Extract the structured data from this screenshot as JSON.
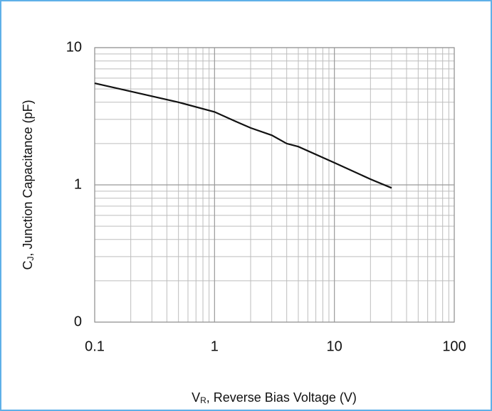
{
  "chart_data": {
    "type": "line",
    "xlabel": [
      "V",
      "R",
      ", Reverse Bias Voltage (V)"
    ],
    "ylabel": [
      "C",
      "J",
      ", Junction Capacitance (pF)"
    ],
    "x": [
      0.1,
      0.2,
      0.5,
      1,
      1.5,
      2,
      3,
      4,
      5,
      10,
      20,
      30
    ],
    "series": [
      {
        "color": "#111111",
        "values": [
          5.5,
          4.8,
          4.0,
          3.4,
          2.9,
          2.6,
          2.3,
          2.0,
          1.9,
          1.45,
          1.1,
          0.95
        ]
      }
    ],
    "xlim": [
      0.1,
      100
    ],
    "ylim": [
      0.1,
      10
    ],
    "xticks": [
      0.1,
      1,
      10,
      100
    ],
    "yticks": [
      {
        "value": 0.1,
        "label": "0"
      },
      1,
      10
    ],
    "xlog": true,
    "ylog": true,
    "grid": true,
    "minor_grid": true
  }
}
